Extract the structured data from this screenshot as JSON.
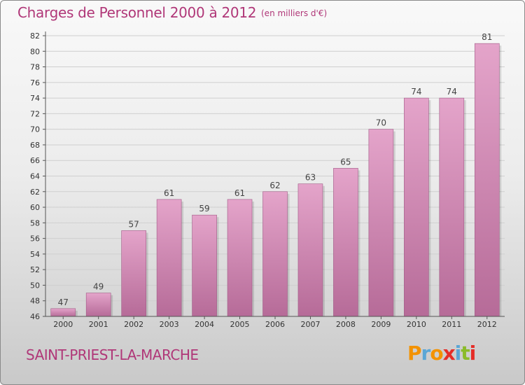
{
  "title": "Charges de Personnel 2000 à 2012",
  "subtitle": "(en milliers d'€)",
  "location": "SAINT-PRIEST-LA-MARCHE",
  "logo": {
    "letters": [
      "P",
      "r",
      "o",
      "x",
      "i",
      "t",
      "i"
    ],
    "colors": [
      "#f39200",
      "#5aa6d6",
      "#f39200",
      "#e52d27",
      "#5aa6d6",
      "#8bbb2a",
      "#e52d27"
    ]
  },
  "colors": {
    "accent": "#b03778",
    "bar_top": "#e4a4ca",
    "bar_bottom": "#b66b98"
  },
  "chart_data": {
    "type": "bar",
    "title": "Charges de Personnel 2000 à 2012",
    "subtitle": "(en milliers d'€)",
    "categories": [
      "2000",
      "2001",
      "2002",
      "2003",
      "2004",
      "2005",
      "2006",
      "2007",
      "2008",
      "2009",
      "2010",
      "2011",
      "2012"
    ],
    "values": [
      47,
      49,
      57,
      61,
      59,
      61,
      62,
      63,
      65,
      70,
      74,
      74,
      81
    ],
    "ylim": [
      46,
      82
    ],
    "yticks": [
      46,
      48,
      50,
      52,
      54,
      56,
      58,
      60,
      62,
      64,
      66,
      68,
      70,
      72,
      74,
      76,
      78,
      80,
      82
    ],
    "xlabel": "",
    "ylabel": "",
    "grid": true
  }
}
